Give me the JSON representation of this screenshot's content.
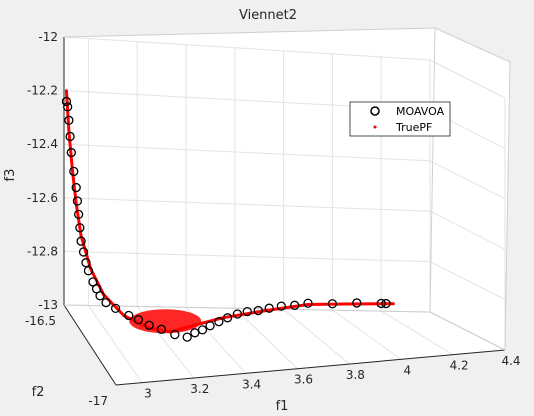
{
  "chart_data": {
    "type": "scatter",
    "title": "Viennet2",
    "xlabel": "f1",
    "ylabel": "f2",
    "zlabel": "f3",
    "xlim": [
      2.9,
      4.4
    ],
    "ylim": [
      -17,
      -16.5
    ],
    "zlim": [
      -13,
      -12
    ],
    "x_ticks": [
      "3",
      "3.2",
      "3.4",
      "3.6",
      "3.8",
      "4",
      "4.2",
      "4.4"
    ],
    "y_ticks": [
      "-16.5",
      "-17"
    ],
    "z_ticks": [
      "-12",
      "-12.2",
      "-12.4",
      "-12.6",
      "-12.8",
      "-13"
    ],
    "grid": true,
    "box": true,
    "legend_position": "top-right",
    "legend": [
      {
        "label": "MOAVOA",
        "marker": "circle",
        "color": "#000000"
      },
      {
        "label": "TruePF",
        "marker": "point",
        "color": "#ff0000"
      }
    ],
    "colors": {
      "moavoa": "#000000",
      "truepf": "#ff0000",
      "axes_bg": "#ffffff",
      "figure_bg": "#f0f0f0",
      "grid": "#dedede"
    },
    "series": [
      {
        "name": "TruePF",
        "marker": "point",
        "points": [
          [
            2.91,
            -16.5,
            -12.2
          ],
          [
            2.92,
            -16.5,
            -12.35
          ],
          [
            2.935,
            -16.5,
            -12.5
          ],
          [
            2.95,
            -16.5,
            -12.62
          ],
          [
            2.97,
            -16.5,
            -12.74
          ],
          [
            3.0,
            -16.52,
            -12.85
          ],
          [
            3.04,
            -16.55,
            -12.93
          ],
          [
            3.1,
            -16.6,
            -12.98
          ],
          [
            3.18,
            -16.65,
            -13.0
          ],
          [
            3.25,
            -16.68,
            -13.0
          ],
          [
            3.35,
            -16.65,
            -12.995
          ],
          [
            3.5,
            -16.6,
            -12.99
          ],
          [
            3.7,
            -16.55,
            -12.985
          ],
          [
            3.9,
            -16.5,
            -12.98
          ],
          [
            4.05,
            -16.5,
            -12.975
          ],
          [
            4.25,
            -16.5,
            -12.97
          ]
        ]
      },
      {
        "name": "MOAVOA",
        "marker": "circle",
        "points": [
          [
            2.91,
            -16.5,
            -12.24
          ],
          [
            2.915,
            -16.5,
            -12.26
          ],
          [
            2.92,
            -16.5,
            -12.31
          ],
          [
            2.925,
            -16.5,
            -12.37
          ],
          [
            2.93,
            -16.5,
            -12.43
          ],
          [
            2.94,
            -16.5,
            -12.5
          ],
          [
            2.95,
            -16.5,
            -12.56
          ],
          [
            2.955,
            -16.5,
            -12.61
          ],
          [
            2.96,
            -16.5,
            -12.66
          ],
          [
            2.965,
            -16.5,
            -12.71
          ],
          [
            2.97,
            -16.5,
            -12.76
          ],
          [
            2.98,
            -16.5,
            -12.8
          ],
          [
            2.99,
            -16.5,
            -12.84
          ],
          [
            3.0,
            -16.5,
            -12.87
          ],
          [
            3.01,
            -16.52,
            -12.9
          ],
          [
            3.02,
            -16.53,
            -12.92
          ],
          [
            3.03,
            -16.54,
            -12.94
          ],
          [
            3.05,
            -16.55,
            -12.96
          ],
          [
            3.08,
            -16.57,
            -12.97
          ],
          [
            3.12,
            -16.6,
            -12.98
          ],
          [
            3.15,
            -16.62,
            -12.985
          ],
          [
            3.18,
            -16.65,
            -12.99
          ],
          [
            3.22,
            -16.67,
            -12.995
          ],
          [
            3.26,
            -16.7,
            -13.0
          ],
          [
            3.3,
            -16.72,
            -13.0
          ],
          [
            3.34,
            -16.7,
            -12.995
          ],
          [
            3.38,
            -16.68,
            -12.995
          ],
          [
            3.42,
            -16.66,
            -12.99
          ],
          [
            3.47,
            -16.63,
            -12.99
          ],
          [
            3.52,
            -16.6,
            -12.99
          ],
          [
            3.57,
            -16.58,
            -12.985
          ],
          [
            3.62,
            -16.56,
            -12.985
          ],
          [
            3.67,
            -16.55,
            -12.985
          ],
          [
            3.72,
            -16.54,
            -12.98
          ],
          [
            3.78,
            -16.52,
            -12.98
          ],
          [
            3.84,
            -16.51,
            -12.98
          ],
          [
            3.9,
            -16.5,
            -12.975
          ],
          [
            4.0,
            -16.5,
            -12.975
          ],
          [
            4.1,
            -16.5,
            -12.97
          ],
          [
            4.2,
            -16.5,
            -12.97
          ],
          [
            4.22,
            -16.5,
            -12.97
          ]
        ]
      }
    ]
  }
}
